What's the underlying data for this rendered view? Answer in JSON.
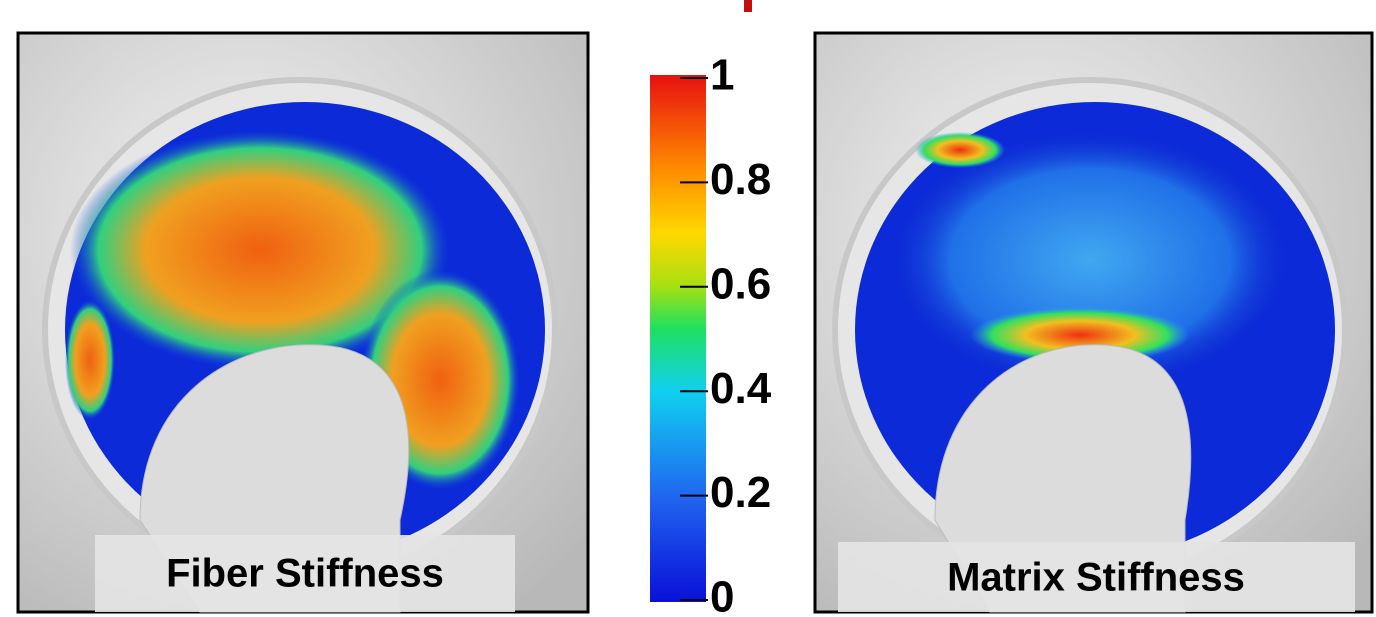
{
  "panels": [
    {
      "label": "Fiber Stiffness"
    },
    {
      "label": "Matrix Stiffness"
    }
  ],
  "colorbar": {
    "lim": [
      0,
      1
    ],
    "ticks": [
      0,
      0.2,
      0.4,
      0.6,
      0.8,
      1
    ]
  }
}
